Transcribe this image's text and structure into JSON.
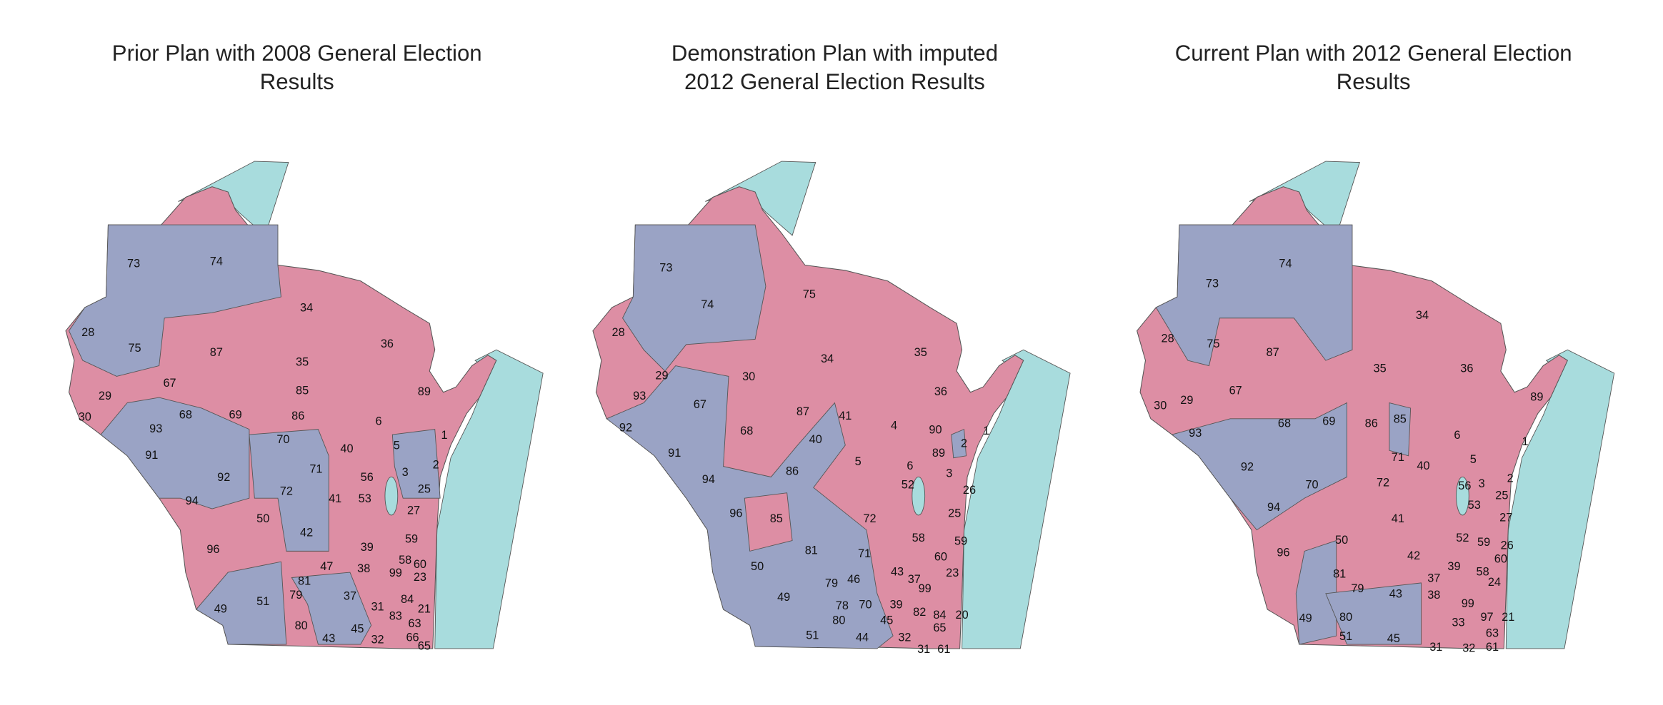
{
  "maps": [
    {
      "title_lines": [
        "Prior Plan with 2008 General Election",
        "Results"
      ],
      "districts": [
        "73",
        "74",
        "34",
        "36",
        "28",
        "75",
        "87",
        "35",
        "67",
        "85",
        "89",
        "29",
        "69",
        "86",
        "68",
        "93",
        "30",
        "6",
        "70",
        "1",
        "91",
        "40",
        "5",
        "92",
        "71",
        "56",
        "3",
        "2",
        "72",
        "41",
        "53",
        "25",
        "94",
        "50",
        "27",
        "42",
        "59",
        "96",
        "39",
        "47",
        "38",
        "58",
        "99",
        "60",
        "81",
        "23",
        "79",
        "37",
        "84",
        "21",
        "31",
        "83",
        "49",
        "51",
        "80",
        "63",
        "45",
        "43",
        "32",
        "66",
        "65"
      ]
    },
    {
      "title_lines": [
        "Demonstration Plan with imputed",
        "2012 General Election Results"
      ],
      "districts": [
        "73",
        "74",
        "75",
        "28",
        "34",
        "35",
        "29",
        "30",
        "93",
        "36",
        "67",
        "87",
        "41",
        "4",
        "90",
        "1",
        "92",
        "68",
        "40",
        "89",
        "2",
        "91",
        "86",
        "5",
        "6",
        "3",
        "94",
        "52",
        "26",
        "96",
        "72",
        "25",
        "85",
        "58",
        "59",
        "81",
        "71",
        "60",
        "50",
        "43",
        "37",
        "23",
        "79",
        "46",
        "99",
        "49",
        "78",
        "70",
        "39",
        "82",
        "84",
        "20",
        "80",
        "45",
        "65",
        "51",
        "44",
        "32",
        "31",
        "61"
      ]
    },
    {
      "title_lines": [
        "Current Plan with 2012 General Election",
        "Results"
      ],
      "districts": [
        "73",
        "74",
        "34",
        "28",
        "75",
        "87",
        "35",
        "36",
        "89",
        "30",
        "29",
        "67",
        "93",
        "68",
        "69",
        "86",
        "85",
        "6",
        "1",
        "92",
        "71",
        "40",
        "5",
        "3",
        "2",
        "70",
        "72",
        "56",
        "53",
        "25",
        "94",
        "41",
        "27",
        "50",
        "52",
        "59",
        "26",
        "96",
        "42",
        "60",
        "58",
        "81",
        "37",
        "39",
        "24",
        "79",
        "38",
        "43",
        "49",
        "80",
        "99",
        "97",
        "21",
        "33",
        "63",
        "51",
        "45",
        "31",
        "32",
        "61"
      ]
    }
  ]
}
